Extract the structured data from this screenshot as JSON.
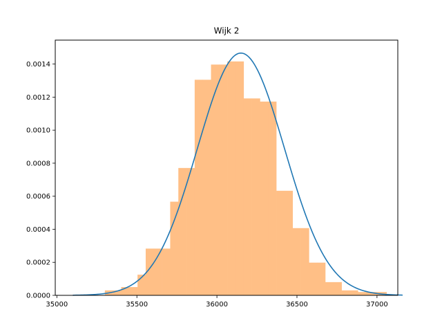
{
  "chart_data": {
    "type": "bar",
    "title": "Wijk 2",
    "xlabel": "",
    "ylabel": "",
    "xlim": [
      34990,
      37130
    ],
    "ylim": [
      0,
      0.001545
    ],
    "x_ticks": [
      35000,
      35500,
      36000,
      36500,
      37000
    ],
    "x_tick_labels": [
      "35000",
      "35500",
      "36000",
      "36500",
      "37000"
    ],
    "y_ticks": [
      0,
      0.0002,
      0.0004,
      0.0006,
      0.0008,
      0.001,
      0.0012,
      0.0014
    ],
    "y_tick_labels": [
      "0.0000",
      "0.0002",
      "0.0004",
      "0.0006",
      "0.0008",
      "0.0010",
      "0.0012",
      "0.0014"
    ],
    "grid": false,
    "histogram": {
      "color": "#ffbf86",
      "bins": [
        {
          "x0": 35300,
          "x1": 35351,
          "density": 3e-05
        },
        {
          "x0": 35351,
          "x1": 35402,
          "density": 3e-05
        },
        {
          "x0": 35402,
          "x1": 35453,
          "density": 5e-05
        },
        {
          "x0": 35453,
          "x1": 35504,
          "density": 5e-05
        },
        {
          "x0": 35504,
          "x1": 35555,
          "density": 0.000125
        },
        {
          "x0": 35555,
          "x1": 35606,
          "density": 0.000283
        },
        {
          "x0": 35606,
          "x1": 35657,
          "density": 0.000283
        },
        {
          "x0": 35657,
          "x1": 35708,
          "density": 0.000283
        },
        {
          "x0": 35708,
          "x1": 35759,
          "density": 0.000567
        },
        {
          "x0": 35759,
          "x1": 35810,
          "density": 0.000771
        },
        {
          "x0": 35810,
          "x1": 35861,
          "density": 0.000771
        },
        {
          "x0": 35861,
          "x1": 35912,
          "density": 0.001305
        },
        {
          "x0": 35912,
          "x1": 35963,
          "density": 0.001305
        },
        {
          "x0": 35963,
          "x1": 36014,
          "density": 0.001397
        },
        {
          "x0": 36014,
          "x1": 36065,
          "density": 0.001397
        },
        {
          "x0": 36065,
          "x1": 36116,
          "density": 0.001416
        },
        {
          "x0": 36116,
          "x1": 36167,
          "density": 0.001416
        },
        {
          "x0": 36167,
          "x1": 36218,
          "density": 0.001192
        },
        {
          "x0": 36218,
          "x1": 36269,
          "density": 0.001192
        },
        {
          "x0": 36269,
          "x1": 36320,
          "density": 0.001173
        },
        {
          "x0": 36320,
          "x1": 36371,
          "density": 0.001173
        },
        {
          "x0": 36371,
          "x1": 36422,
          "density": 0.000633
        },
        {
          "x0": 36422,
          "x1": 36473,
          "density": 0.000633
        },
        {
          "x0": 36473,
          "x1": 36524,
          "density": 0.000407
        },
        {
          "x0": 36524,
          "x1": 36575,
          "density": 0.000407
        },
        {
          "x0": 36575,
          "x1": 36626,
          "density": 0.000198
        },
        {
          "x0": 36626,
          "x1": 36677,
          "density": 0.000198
        },
        {
          "x0": 36677,
          "x1": 36728,
          "density": 8e-05
        },
        {
          "x0": 36728,
          "x1": 36779,
          "density": 8e-05
        },
        {
          "x0": 36779,
          "x1": 36830,
          "density": 3e-05
        },
        {
          "x0": 36830,
          "x1": 36881,
          "density": 3e-05
        },
        {
          "x0": 36881,
          "x1": 37060,
          "density": 2e-05
        }
      ]
    },
    "normal_curve": {
      "color": "#1f77b4",
      "mean": 36150,
      "std": 272,
      "x_range": [
        35100,
        37160
      ]
    }
  }
}
